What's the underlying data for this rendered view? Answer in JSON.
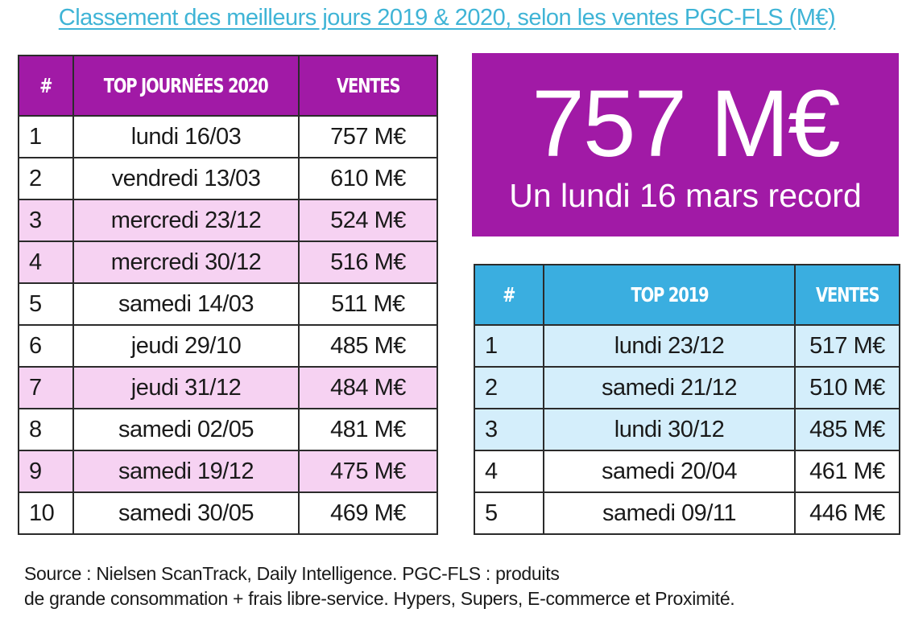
{
  "title": "Classement des meilleurs jours 2019 & 2020, selon les ventes PGC-FLS (M€)",
  "hero": {
    "value": "757 M€",
    "caption": "Un lundi 16 mars record"
  },
  "colors": {
    "accent_2020": "#a11aa6",
    "highlight_2020": "#f6d2f2",
    "accent_2019": "#3aaee0",
    "highlight_2019": "#d4eefb",
    "title": "#3fb4d6"
  },
  "chart_data": [
    {
      "type": "table",
      "columns": [
        "#",
        "TOP JOURNÉES 2020",
        "VENTES"
      ],
      "rows": [
        [
          "1",
          "lundi 16/03",
          "757 M€"
        ],
        [
          "2",
          "vendredi 13/03",
          "610 M€"
        ],
        [
          "3",
          "mercredi 23/12",
          "524 M€"
        ],
        [
          "4",
          "mercredi 30/12",
          "516 M€"
        ],
        [
          "5",
          "samedi 14/03",
          "511 M€"
        ],
        [
          "6",
          "jeudi 29/10",
          "485 M€"
        ],
        [
          "7",
          "jeudi 31/12",
          "484 M€"
        ],
        [
          "8",
          "samedi 02/05",
          "481 M€"
        ],
        [
          "9",
          "samedi 19/12",
          "475 M€"
        ],
        [
          "10",
          "samedi 30/05",
          "469 M€"
        ]
      ],
      "values": [
        757,
        610,
        524,
        516,
        511,
        485,
        484,
        481,
        475,
        469
      ],
      "highlighted_ranks": [
        3,
        4,
        7,
        9
      ]
    },
    {
      "type": "table",
      "columns": [
        "#",
        "TOP 2019",
        "VENTES"
      ],
      "rows": [
        [
          "1",
          "lundi 23/12",
          "517 M€"
        ],
        [
          "2",
          "samedi 21/12",
          "510 M€"
        ],
        [
          "3",
          "lundi 30/12",
          "485 M€"
        ],
        [
          "4",
          "samedi 20/04",
          "461 M€"
        ],
        [
          "5",
          "samedi 09/11",
          "446 M€"
        ]
      ],
      "values": [
        517,
        510,
        485,
        461,
        446
      ],
      "highlighted_ranks": [
        1,
        2,
        3
      ]
    }
  ],
  "source_lines": [
    "Source : Nielsen ScanTrack, Daily Intelligence. PGC-FLS : produits",
    "de grande consommation + frais libre-service. Hypers, Supers, E-commerce et Proximité."
  ]
}
